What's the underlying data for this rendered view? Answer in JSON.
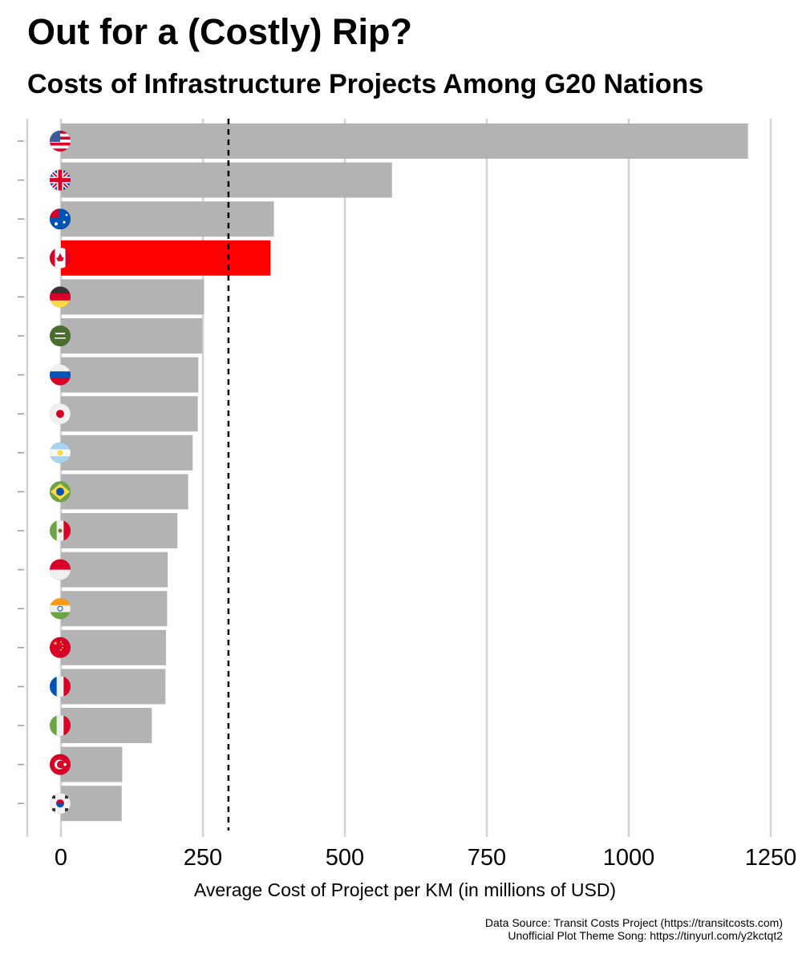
{
  "title": "Out for a (Costly) Rip?",
  "subtitle": "Costs of Infrastructure Projects Among G20 Nations",
  "captions": {
    "source": "Data Source:  Transit Costs Project (https://transitcosts.com)",
    "song": "Unofficial Plot Theme Song: https://tinyurl.com/y2kctqt2"
  },
  "colors": {
    "bar": "#b3b3b3",
    "highlight": "#ff0000",
    "grid": "#d3d3d3",
    "reference": "#000000"
  },
  "chart_data": {
    "type": "bar",
    "orientation": "horizontal",
    "categories": [
      "United States",
      "United Kingdom",
      "Australia",
      "Canada",
      "Germany",
      "Saudi Arabia",
      "Russia",
      "Japan",
      "Argentina",
      "Brazil",
      "Mexico",
      "Indonesia",
      "India",
      "China",
      "France",
      "Italy",
      "Turkey",
      "South Korea"
    ],
    "category_icons": [
      "us-flag-icon",
      "uk-flag-icon",
      "australia-flag-icon",
      "canada-flag-icon",
      "germany-flag-icon",
      "saudi-arabia-flag-icon",
      "russia-flag-icon",
      "japan-flag-icon",
      "argentina-flag-icon",
      "brazil-flag-icon",
      "mexico-flag-icon",
      "indonesia-flag-icon",
      "india-flag-icon",
      "china-flag-icon",
      "france-flag-icon",
      "italy-flag-icon",
      "turkey-flag-icon",
      "south-korea-flag-icon"
    ],
    "values": [
      1210,
      583,
      375,
      369,
      252,
      249,
      242,
      241,
      232,
      224,
      205,
      188,
      187,
      185,
      184,
      160,
      108,
      107
    ],
    "highlight": "Canada",
    "reference_line": 295,
    "xlabel": "Average Cost of Project per KM (in millions of USD)",
    "xticks": [
      0,
      250,
      500,
      750,
      1000,
      1250
    ],
    "xlim": [
      -60,
      1300
    ],
    "grid": true
  }
}
